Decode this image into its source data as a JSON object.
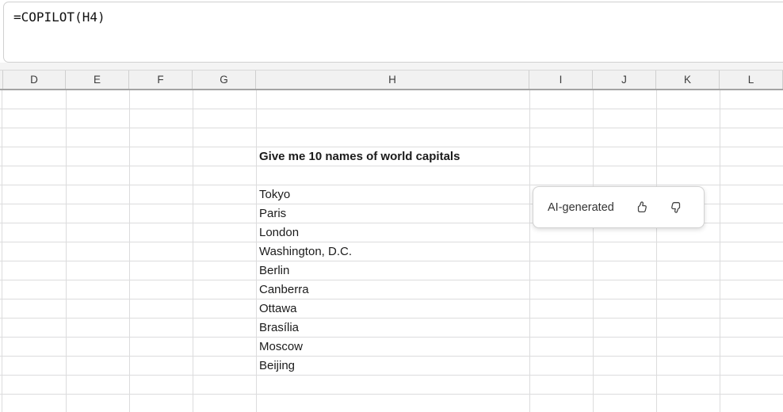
{
  "formula_bar": {
    "formula": "=COPILOT(H4)"
  },
  "sheet": {
    "column_headers": [
      "D",
      "E",
      "F",
      "G",
      "H",
      "I",
      "J",
      "K",
      "L"
    ],
    "prompt_cell_text": "Give me 10 names of world capitals",
    "result_cells": [
      "Tokyo",
      "Paris",
      "London",
      "Washington, D.C.",
      "Berlin",
      "Canberra",
      "Ottawa",
      "Brasília",
      "Moscow",
      "Beijing"
    ]
  },
  "ai_card": {
    "label": "AI-generated",
    "thumbs_up_icon": "thumbs-up-icon",
    "thumbs_down_icon": "thumbs-down-icon"
  },
  "colors": {
    "grid_line": "#dcdcdd",
    "header_bg": "#f1f1f1",
    "header_rule": "#a3a3a3",
    "cell_text": "#1b1b1b",
    "header_text": "#3d3d3d",
    "card_border": "#d2d2d2",
    "icon_stroke": "#444444"
  }
}
